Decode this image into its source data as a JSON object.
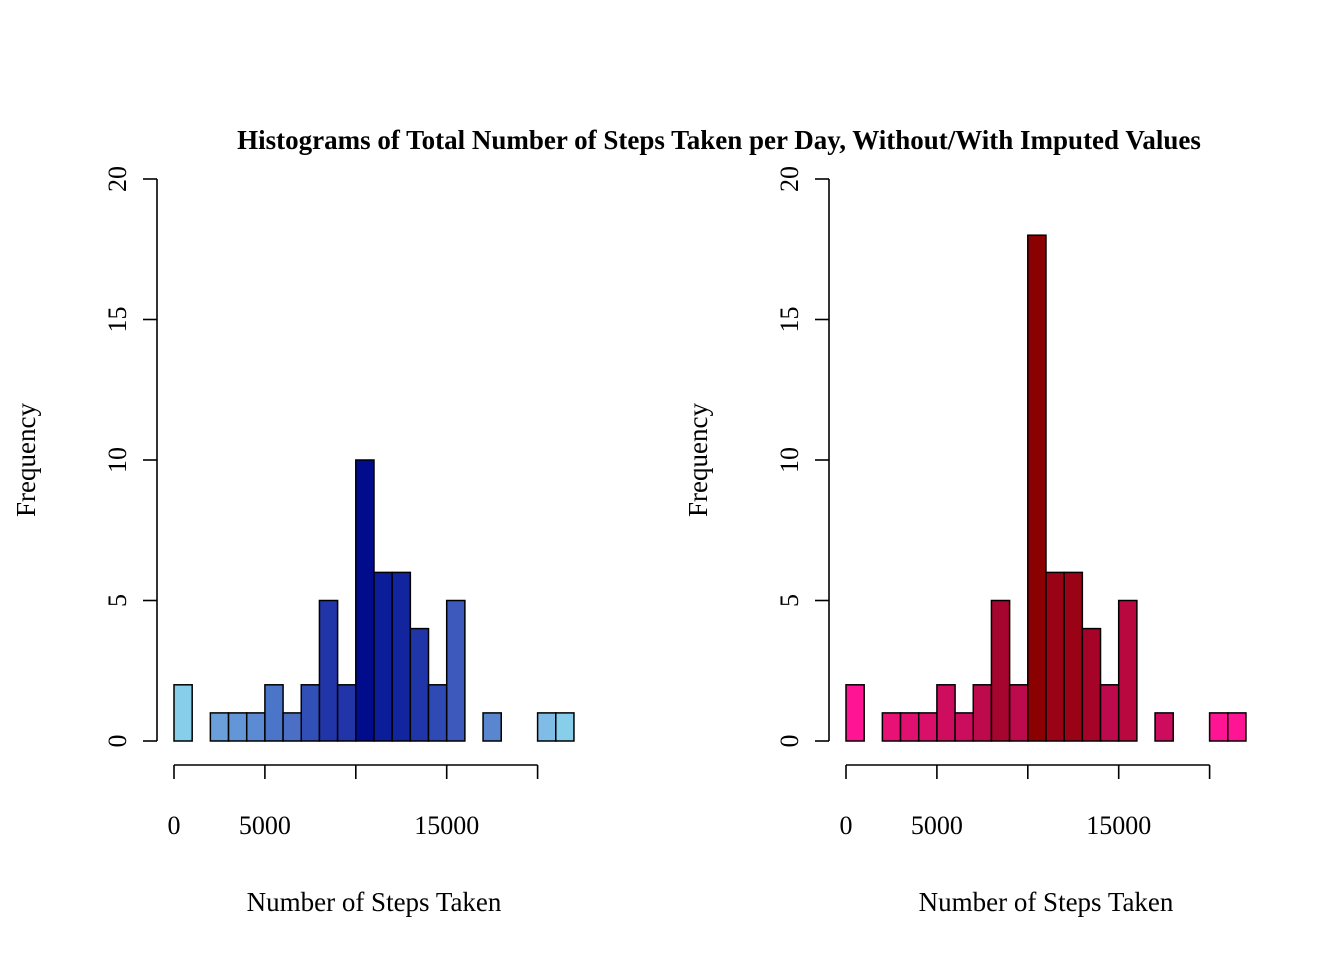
{
  "title": "Histograms of Total Number of Steps Taken per Day, Without/With Imputed Values",
  "chart_data": [
    {
      "type": "bar",
      "panel": "left",
      "xlabel": "Number of Steps Taken",
      "ylabel": "Frequency",
      "xlim": [
        0,
        22000
      ],
      "ylim": [
        0,
        20
      ],
      "bin_width": 1000,
      "xticks": [
        0,
        5000,
        10000,
        15000,
        20000
      ],
      "xtick_labels": [
        "0",
        "5000",
        "",
        "15000",
        ""
      ],
      "yticks": [
        0,
        5,
        10,
        15,
        20
      ],
      "ytick_labels": [
        "0",
        "5",
        "10",
        "15",
        "20"
      ],
      "bins": [
        {
          "start": 0,
          "end": 1000,
          "count": 2,
          "color": "#87ceeb"
        },
        {
          "start": 1000,
          "end": 2000,
          "count": 0,
          "color": "#87ceeb"
        },
        {
          "start": 2000,
          "end": 3000,
          "count": 1,
          "color": "#6a9fda"
        },
        {
          "start": 3000,
          "end": 4000,
          "count": 1,
          "color": "#6396d7"
        },
        {
          "start": 4000,
          "end": 5000,
          "count": 1,
          "color": "#5b8cd3"
        },
        {
          "start": 5000,
          "end": 6000,
          "count": 2,
          "color": "#4a75c8"
        },
        {
          "start": 6000,
          "end": 7000,
          "count": 1,
          "color": "#4a6fc5"
        },
        {
          "start": 7000,
          "end": 8000,
          "count": 2,
          "color": "#3050b8"
        },
        {
          "start": 8000,
          "end": 9000,
          "count": 5,
          "color": "#2135a8"
        },
        {
          "start": 9000,
          "end": 10000,
          "count": 2,
          "color": "#2135a8"
        },
        {
          "start": 10000,
          "end": 11000,
          "count": 10,
          "color": "#000c8c"
        },
        {
          "start": 11000,
          "end": 12000,
          "count": 6,
          "color": "#0c1d99"
        },
        {
          "start": 12000,
          "end": 13000,
          "count": 6,
          "color": "#12249e"
        },
        {
          "start": 13000,
          "end": 14000,
          "count": 4,
          "color": "#2035a8"
        },
        {
          "start": 14000,
          "end": 15000,
          "count": 2,
          "color": "#2f4ab5"
        },
        {
          "start": 15000,
          "end": 16000,
          "count": 5,
          "color": "#3c59bb"
        },
        {
          "start": 16000,
          "end": 17000,
          "count": 0,
          "color": "#3c59bb"
        },
        {
          "start": 17000,
          "end": 18000,
          "count": 1,
          "color": "#5a86d0"
        },
        {
          "start": 18000,
          "end": 19000,
          "count": 0,
          "color": "#5a86d0"
        },
        {
          "start": 19000,
          "end": 20000,
          "count": 0,
          "color": "#5a86d0"
        },
        {
          "start": 20000,
          "end": 21000,
          "count": 1,
          "color": "#7fbce6"
        },
        {
          "start": 21000,
          "end": 22000,
          "count": 1,
          "color": "#87ceeb"
        }
      ]
    },
    {
      "type": "bar",
      "panel": "right",
      "xlabel": "Number of Steps Taken",
      "ylabel": "Frequency",
      "xlim": [
        0,
        22000
      ],
      "ylim": [
        0,
        20
      ],
      "bin_width": 1000,
      "xticks": [
        0,
        5000,
        10000,
        15000,
        20000
      ],
      "xtick_labels": [
        "0",
        "5000",
        "",
        "15000",
        ""
      ],
      "yticks": [
        0,
        5,
        10,
        15,
        20
      ],
      "ytick_labels": [
        "0",
        "5",
        "10",
        "15",
        "20"
      ],
      "bins": [
        {
          "start": 0,
          "end": 1000,
          "count": 2,
          "color": "#ff1493"
        },
        {
          "start": 1000,
          "end": 2000,
          "count": 0,
          "color": "#ff1493"
        },
        {
          "start": 2000,
          "end": 3000,
          "count": 1,
          "color": "#e81277"
        },
        {
          "start": 3000,
          "end": 4000,
          "count": 1,
          "color": "#e11070"
        },
        {
          "start": 4000,
          "end": 5000,
          "count": 1,
          "color": "#d90f6a"
        },
        {
          "start": 5000,
          "end": 6000,
          "count": 2,
          "color": "#cf0d5f"
        },
        {
          "start": 6000,
          "end": 7000,
          "count": 1,
          "color": "#cc0c5c"
        },
        {
          "start": 7000,
          "end": 8000,
          "count": 2,
          "color": "#bc0a4c"
        },
        {
          "start": 8000,
          "end": 9000,
          "count": 5,
          "color": "#a5052f"
        },
        {
          "start": 9000,
          "end": 10000,
          "count": 2,
          "color": "#bc0a4c"
        },
        {
          "start": 10000,
          "end": 11000,
          "count": 18,
          "color": "#8b0000"
        },
        {
          "start": 11000,
          "end": 12000,
          "count": 6,
          "color": "#9a0216"
        },
        {
          "start": 12000,
          "end": 13000,
          "count": 6,
          "color": "#9a0216"
        },
        {
          "start": 13000,
          "end": 14000,
          "count": 4,
          "color": "#a50428"
        },
        {
          "start": 14000,
          "end": 15000,
          "count": 2,
          "color": "#bc0a4c"
        },
        {
          "start": 15000,
          "end": 16000,
          "count": 5,
          "color": "#b8083f"
        },
        {
          "start": 16000,
          "end": 17000,
          "count": 0,
          "color": "#b8083f"
        },
        {
          "start": 17000,
          "end": 18000,
          "count": 1,
          "color": "#cd0c5e"
        },
        {
          "start": 18000,
          "end": 19000,
          "count": 0,
          "color": "#cd0c5e"
        },
        {
          "start": 19000,
          "end": 20000,
          "count": 0,
          "color": "#cd0c5e"
        },
        {
          "start": 20000,
          "end": 21000,
          "count": 1,
          "color": "#ff1493"
        },
        {
          "start": 21000,
          "end": 22000,
          "count": 1,
          "color": "#ff1493"
        }
      ]
    }
  ]
}
